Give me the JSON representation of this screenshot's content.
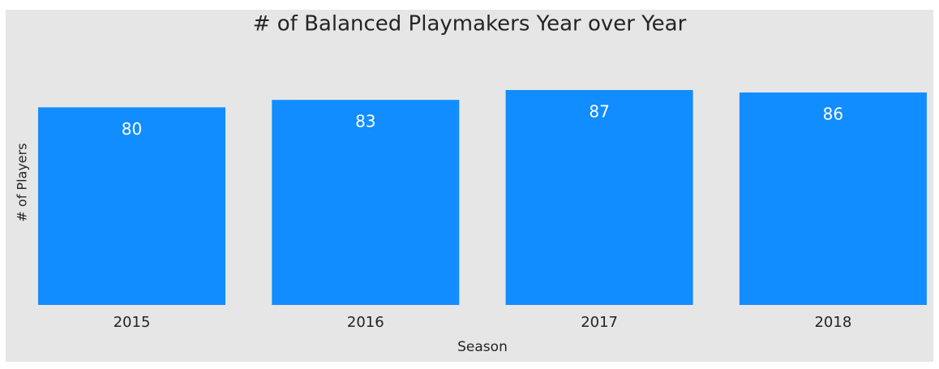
{
  "chart_data": {
    "type": "bar",
    "title": "# of Balanced Playmakers Year over Year",
    "x_label": "Season",
    "y_label": "# of Players",
    "categories": [
      "2015",
      "2016",
      "2017",
      "2018"
    ],
    "values": [
      80,
      83,
      87,
      86
    ],
    "color": "#118dff",
    "ylim": [
      0,
      87
    ]
  }
}
